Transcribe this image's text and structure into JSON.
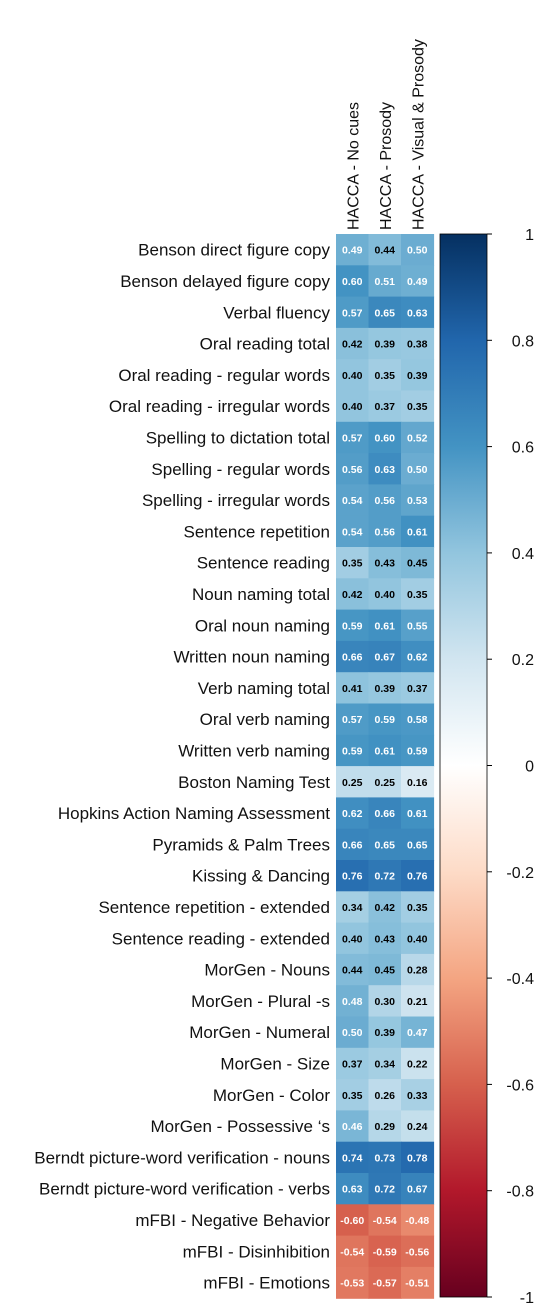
{
  "chart_data": {
    "type": "heatmap",
    "title": "",
    "columns": [
      "HACCA - No cues",
      "HACCA - Prosody",
      "HACCA - Visual & Prosody"
    ],
    "rows": [
      "Benson direct figure copy",
      "Benson delayed figure copy",
      "Verbal fluency",
      "Oral reading total",
      "Oral reading - regular words",
      "Oral reading - irregular words",
      "Spelling to dictation total",
      "Spelling - regular words",
      "Spelling - irregular words",
      "Sentence repetition",
      "Sentence reading",
      "Noun naming total",
      "Oral noun naming",
      "Written noun naming",
      "Verb naming total",
      "Oral verb naming",
      "Written verb naming",
      "Boston Naming Test",
      "Hopkins Action Naming Assessment",
      "Pyramids & Palm Trees",
      "Kissing & Dancing",
      "Sentence repetition - extended",
      "Sentence reading - extended",
      "MorGen - Nouns",
      "MorGen - Plural -s",
      "MorGen - Numeral",
      "MorGen - Size",
      "MorGen - Color",
      "MorGen - Possessive ‘s",
      "Berndt picture-word verification - nouns",
      "Berndt picture-word verification - verbs",
      "mFBI - Negative Behavior",
      "mFBI - Disinhibition",
      "mFBI - Emotions"
    ],
    "values": [
      [
        0.49,
        0.44,
        0.5
      ],
      [
        0.6,
        0.51,
        0.49
      ],
      [
        0.57,
        0.65,
        0.63
      ],
      [
        0.42,
        0.39,
        0.38
      ],
      [
        0.4,
        0.35,
        0.39
      ],
      [
        0.4,
        0.37,
        0.35
      ],
      [
        0.57,
        0.6,
        0.52
      ],
      [
        0.56,
        0.63,
        0.5
      ],
      [
        0.54,
        0.56,
        0.53
      ],
      [
        0.54,
        0.56,
        0.61
      ],
      [
        0.35,
        0.43,
        0.45
      ],
      [
        0.42,
        0.4,
        0.35
      ],
      [
        0.59,
        0.61,
        0.55
      ],
      [
        0.66,
        0.67,
        0.62
      ],
      [
        0.41,
        0.39,
        0.37
      ],
      [
        0.57,
        0.59,
        0.58
      ],
      [
        0.59,
        0.61,
        0.59
      ],
      [
        0.25,
        0.25,
        0.16
      ],
      [
        0.62,
        0.66,
        0.61
      ],
      [
        0.66,
        0.65,
        0.65
      ],
      [
        0.76,
        0.72,
        0.76
      ],
      [
        0.34,
        0.42,
        0.35
      ],
      [
        0.4,
        0.43,
        0.4
      ],
      [
        0.44,
        0.45,
        0.28
      ],
      [
        0.48,
        0.3,
        0.21
      ],
      [
        0.5,
        0.39,
        0.47
      ],
      [
        0.37,
        0.34,
        0.22
      ],
      [
        0.35,
        0.26,
        0.33
      ],
      [
        0.46,
        0.29,
        0.24
      ],
      [
        0.74,
        0.73,
        0.78
      ],
      [
        0.63,
        0.72,
        0.67
      ],
      [
        -0.6,
        -0.54,
        -0.48
      ],
      [
        -0.54,
        -0.59,
        -0.56
      ],
      [
        -0.53,
        -0.57,
        -0.51
      ]
    ],
    "value_labels": [
      [
        "0.49",
        "0.44",
        "0.50"
      ],
      [
        "0.60",
        "0.51",
        "0.49"
      ],
      [
        "0.57",
        "0.65",
        "0.63"
      ],
      [
        "0.42",
        "0.39",
        "0.38"
      ],
      [
        "0.40",
        "0.35",
        "0.39"
      ],
      [
        "0.40",
        "0.37",
        "0.35"
      ],
      [
        "0.57",
        "0.60",
        "0.52"
      ],
      [
        "0.56",
        "0.63",
        "0.50"
      ],
      [
        "0.54",
        "0.56",
        "0.53"
      ],
      [
        "0.54",
        "0.56",
        "0.61"
      ],
      [
        "0.35",
        "0.43",
        "0.45"
      ],
      [
        "0.42",
        "0.40",
        "0.35"
      ],
      [
        "0.59",
        "0.61",
        "0.55"
      ],
      [
        "0.66",
        "0.67",
        "0.62"
      ],
      [
        "0.41",
        "0.39",
        "0.37"
      ],
      [
        "0.57",
        "0.59",
        "0.58"
      ],
      [
        "0.59",
        "0.61",
        "0.59"
      ],
      [
        "0.25",
        "0.25",
        "0.16"
      ],
      [
        "0.62",
        "0.66",
        "0.61"
      ],
      [
        "0.66",
        "0.65",
        "0.65"
      ],
      [
        "0.76",
        "0.72",
        "0.76"
      ],
      [
        "0.34",
        "0.42",
        "0.35"
      ],
      [
        "0.40",
        "0.43",
        "0.40"
      ],
      [
        "0.44",
        "0.45",
        "0.28"
      ],
      [
        "0.48",
        "0.30",
        "0.21"
      ],
      [
        "0.50",
        "0.39",
        "0.47"
      ],
      [
        "0.37",
        "0.34",
        "0.22"
      ],
      [
        "0.35",
        "0.26",
        "0.33"
      ],
      [
        "0.46",
        "0.29",
        "0.24"
      ],
      [
        "0.74",
        "0.73",
        "0.78"
      ],
      [
        "0.63",
        "0.72",
        "0.67"
      ],
      [
        "-0.60",
        "-0.54",
        "-0.48"
      ],
      [
        "-0.54",
        "-0.59",
        "-0.56"
      ],
      [
        "-0.53",
        "-0.57",
        "-0.51"
      ]
    ],
    "colorbar": {
      "range": [
        -1,
        1
      ],
      "ticks": [
        1,
        0.8,
        0.6,
        0.4,
        0.2,
        0,
        -0.2,
        -0.4,
        -0.6,
        -0.8,
        -1
      ],
      "tick_labels": [
        "1",
        "0.8",
        "0.6",
        "0.4",
        "0.2",
        "0",
        "-0.2",
        "-0.4",
        "-0.6",
        "-0.8",
        "-1"
      ],
      "palette": [
        "#67001F",
        "#B2182B",
        "#D6604D",
        "#F4A582",
        "#FDDBC7",
        "#FFFFFF",
        "#D1E5F0",
        "#92C5DE",
        "#4393C3",
        "#2166AC",
        "#053061"
      ]
    },
    "grid": false,
    "legend": "right"
  }
}
